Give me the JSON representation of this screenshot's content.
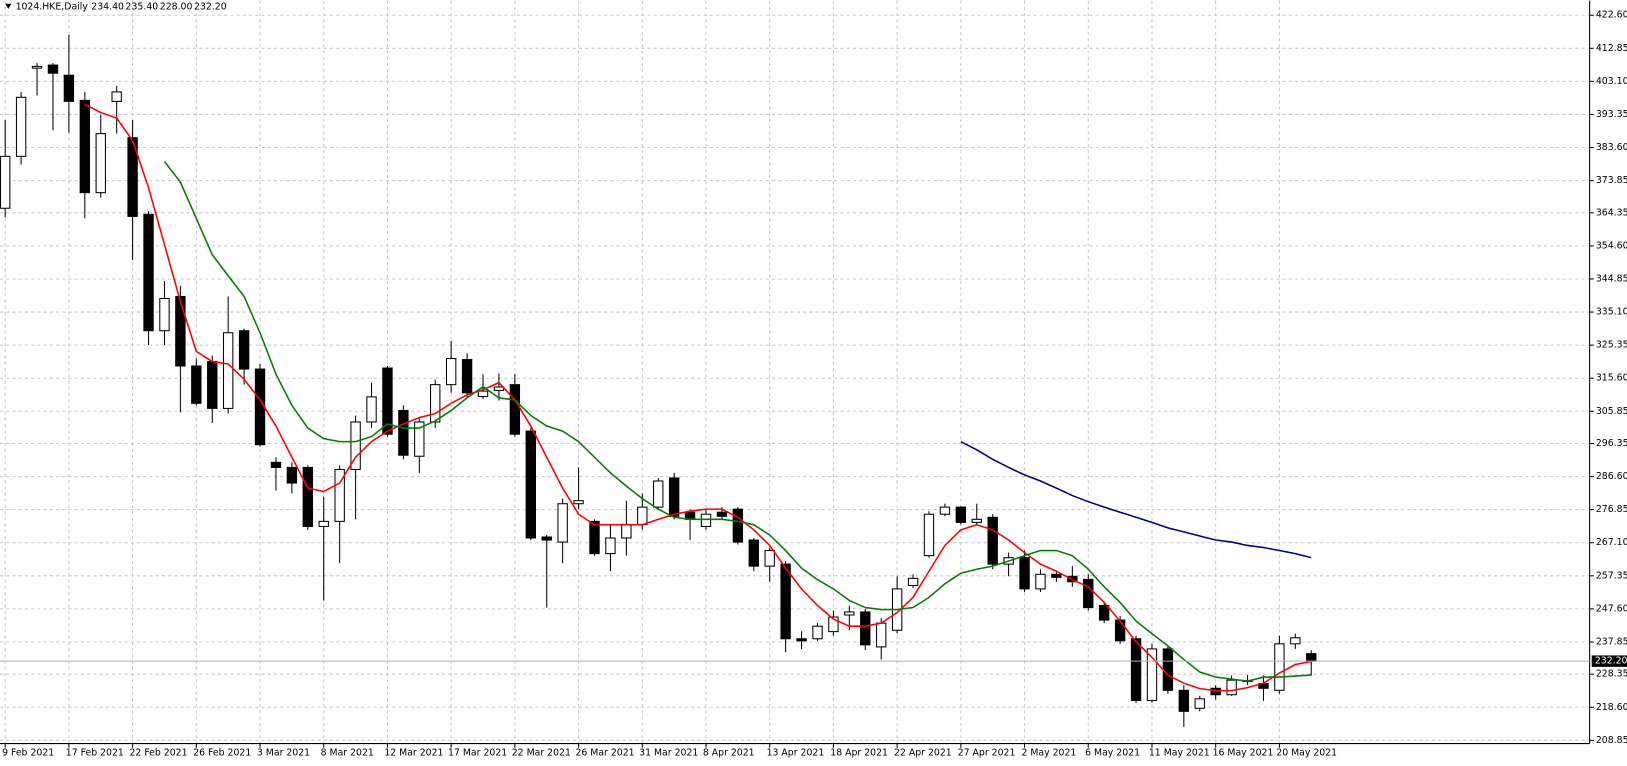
{
  "chart_data": {
    "type": "candlestick",
    "title": "1024.HKE,Daily",
    "info_labels": [
      "234.40",
      "235.40",
      "228.00",
      "232.20"
    ],
    "current_price": {
      "value": 232.2,
      "label": "232.20"
    },
    "categories": [
      "9 Feb 2021",
      null,
      null,
      null,
      "17 Feb 2021",
      null,
      null,
      null,
      "22 Feb 2021",
      null,
      null,
      null,
      "26 Feb 2021",
      null,
      null,
      null,
      "3 Mar 2021",
      null,
      null,
      null,
      "8 Mar 2021",
      null,
      null,
      null,
      "12 Mar 2021",
      null,
      null,
      null,
      "17 Mar 2021",
      null,
      null,
      null,
      "22 Mar 2021",
      null,
      null,
      null,
      "26 Mar 2021",
      null,
      null,
      null,
      "31 Mar 2021",
      null,
      null,
      null,
      "8 Apr 2021",
      null,
      null,
      null,
      "13 Apr 2021",
      null,
      null,
      null,
      "18 Apr 2021",
      null,
      null,
      null,
      "22 Apr 2021",
      null,
      null,
      null,
      "27 Apr 2021",
      null,
      null,
      null,
      "2 May 2021",
      null,
      null,
      null,
      "6 May 2021",
      null,
      null,
      null,
      "11 May 2021",
      null,
      null,
      null,
      "16 May 2021",
      null,
      null,
      null,
      "20 May 2021",
      null,
      null
    ],
    "open": [
      365.7,
      381.0,
      407,
      407.9,
      404.9,
      397.5,
      370.3,
      397.2,
      386.5,
      363.9,
      329.6,
      339.7,
      319.2,
      320.5,
      306.7,
      329.6,
      318.3,
      290.8,
      289.3,
      289.3,
      271.9,
      273.4,
      288.7,
      302.7,
      318.6,
      306.1,
      292.6,
      302.7,
      313.7,
      321.1,
      310.2,
      312,
      313.7,
      300,
      268.8,
      267.3,
      278.6,
      273.4,
      263.9,
      268.5,
      272.5,
      277.6,
      286.2,
      276.1,
      271.9,
      276.1,
      277,
      267.9,
      260.2,
      260.8,
      238.8,
      238.8,
      240.9,
      245.8,
      246.7,
      236.4,
      241.3,
      254.5,
      263.3,
      275.5,
      277.6,
      273.1,
      274.6,
      260.8,
      262.7,
      253.5,
      257.8,
      257.2,
      256.3,
      248.6,
      244.3,
      238.8,
      220.6,
      235.8,
      223.6,
      218.3,
      224.2,
      222.3,
      226.5,
      225.6,
      223.6,
      237.3,
      234.4
    ],
    "high": [
      391.7,
      400,
      408.5,
      408.5,
      416.8,
      400,
      393.2,
      401.8,
      391.7,
      364.8,
      344.3,
      342.8,
      321.4,
      322.3,
      339.7,
      330.2,
      319.8,
      292.3,
      290.8,
      289.9,
      280.7,
      289.9,
      304.6,
      314.3,
      319.2,
      307.6,
      303.7,
      315.2,
      326.6,
      322.9,
      316.8,
      317,
      316.8,
      300.9,
      269.4,
      280.1,
      289.3,
      274,
      272.5,
      279.5,
      281.6,
      286.2,
      287.7,
      277,
      277,
      277.6,
      277.6,
      268.5,
      265.7,
      261.7,
      241,
      243.4,
      247.1,
      248.6,
      247.6,
      244.9,
      257.2,
      257.8,
      276.4,
      278.6,
      277.9,
      278.6,
      275.5,
      264.2,
      264.8,
      259.3,
      258.7,
      260.2,
      257.8,
      249.5,
      245.5,
      239.7,
      237.3,
      236.7,
      225.1,
      222,
      225.1,
      228,
      228.1,
      228,
      239.7,
      240.3,
      235.4
    ],
    "low": [
      363,
      378.6,
      399,
      388.7,
      388,
      362.7,
      368.8,
      387.7,
      350.4,
      325.4,
      325.4,
      305.5,
      307.6,
      302.4,
      305.2,
      313.7,
      295.4,
      282.5,
      281.6,
      270.9,
      250.1,
      261.1,
      274,
      300.9,
      298.4,
      291.7,
      287.7,
      300.9,
      311.3,
      309.8,
      309.5,
      309,
      298.4,
      267.9,
      248,
      261.1,
      277,
      263.3,
      258.7,
      263.3,
      270.9,
      277,
      274,
      267.9,
      270.9,
      274,
      266.6,
      258.7,
      255.6,
      234.8,
      235.8,
      238.2,
      239.7,
      241.3,
      235.5,
      232.7,
      240.4,
      253.8,
      262.7,
      274.9,
      272.5,
      272.5,
      259.3,
      257.2,
      252.6,
      252.6,
      255.6,
      254.1,
      247.1,
      243.4,
      237.3,
      219.9,
      219.9,
      222.6,
      212.8,
      217.4,
      220.9,
      222.0,
      225.2,
      220.5,
      222.6,
      235.8,
      228
    ],
    "close": [
      381.0,
      398.4,
      407.5,
      405.5,
      397.2,
      370.3,
      387.7,
      400,
      363.3,
      329.6,
      339.1,
      319.2,
      308.2,
      306.7,
      329,
      318.3,
      296,
      289.3,
      284.7,
      271.9,
      273.4,
      288.7,
      302.7,
      310.1,
      299.1,
      292.9,
      302.7,
      313.7,
      321.4,
      311.3,
      311.8,
      313,
      299.1,
      268.5,
      267.9,
      278.6,
      279.5,
      263.9,
      268.5,
      272.5,
      277.6,
      285.3,
      274.9,
      274,
      275.5,
      274.9,
      267.3,
      260.2,
      264.8,
      238.8,
      238.2,
      242.5,
      245.2,
      246.7,
      237,
      243.4,
      253.5,
      256.6,
      275.5,
      277.6,
      273.1,
      274,
      260.8,
      262.7,
      253.5,
      257.8,
      256.9,
      255.6,
      248,
      244.3,
      238.2,
      220.6,
      235.8,
      223.6,
      217.4,
      221.1,
      222.3,
      226.6,
      226.3,
      224.2,
      237.3,
      239.1,
      232.2
    ],
    "up_color": "#ffffff",
    "down_color": "#000000",
    "lines": [
      {
        "color": "#ff0000",
        "values": [
          null,
          null,
          null,
          null,
          null,
          396.3,
          393.9,
          392.3,
          385.6,
          371.8,
          355.0,
          338.2,
          323.5,
          320.5,
          319.8,
          315.3,
          309.2,
          301.5,
          292.3,
          283.2,
          282.2,
          284.7,
          292.3,
          296.9,
          300.0,
          302.1,
          304.0,
          305.2,
          308.2,
          310.7,
          312.2,
          314.3,
          309.2,
          301.5,
          292.3,
          283.2,
          275.5,
          272.4,
          272.4,
          272.4,
          272.4,
          274.0,
          275.5,
          276.4,
          277.0,
          277.0,
          274.6,
          270.9,
          266.3,
          259.6,
          253.5,
          248.6,
          244.6,
          242.5,
          242.5,
          243.4,
          246.5,
          251.0,
          258.7,
          266.3,
          270.9,
          272.4,
          270.9,
          267.9,
          264.2,
          260.8,
          258.7,
          256.2,
          254.1,
          249.5,
          244.0,
          237.9,
          233.3,
          228.1,
          225.7,
          224.1,
          223.5,
          223.5,
          224.4,
          225.7,
          228.7,
          231.2,
          232.1
        ]
      },
      {
        "color": "#008000",
        "values": [
          null,
          null,
          null,
          null,
          null,
          null,
          null,
          null,
          null,
          null,
          379.5,
          373.4,
          362.7,
          352.0,
          345.8,
          339.7,
          329.0,
          316.8,
          307.6,
          300.9,
          297.8,
          296.9,
          296.9,
          298.4,
          302.1,
          300.9,
          300.9,
          303.0,
          306.1,
          309.8,
          313.1,
          309.8,
          309.2,
          304.6,
          301.5,
          300.0,
          296.9,
          292.3,
          287.7,
          283.8,
          280.1,
          277.0,
          274.6,
          274.0,
          274.0,
          274.0,
          273.4,
          272.4,
          269.4,
          264.8,
          259.6,
          256.2,
          253.5,
          250.1,
          248.0,
          247.4,
          247.4,
          248.0,
          251.0,
          255.0,
          258.1,
          259.3,
          260.2,
          261.7,
          263.3,
          264.8,
          264.8,
          263.3,
          259.3,
          254.1,
          249.5,
          244.0,
          240.3,
          236.7,
          232.7,
          229.0,
          227.5,
          226.9,
          226.3,
          227.5,
          227.5,
          227.8,
          228.1
        ]
      },
      {
        "color": "#000080",
        "values": [
          null,
          null,
          null,
          null,
          null,
          null,
          null,
          null,
          null,
          null,
          null,
          null,
          null,
          null,
          null,
          null,
          null,
          null,
          null,
          null,
          null,
          null,
          null,
          null,
          null,
          null,
          null,
          null,
          null,
          null,
          null,
          null,
          null,
          null,
          null,
          null,
          null,
          null,
          null,
          null,
          null,
          null,
          null,
          null,
          null,
          null,
          null,
          null,
          null,
          null,
          null,
          null,
          null,
          null,
          null,
          null,
          null,
          null,
          null,
          null,
          296.9,
          294.5,
          291.7,
          289.3,
          287.1,
          285.3,
          283.2,
          281.0,
          279.2,
          277.6,
          276.1,
          274.6,
          273.1,
          271.5,
          270.3,
          269.1,
          267.9,
          267.3,
          266.3,
          265.7,
          264.8,
          263.9,
          262.7
        ]
      }
    ],
    "ylim": [
      207.9,
      426.9
    ],
    "yticks": [
      208.85,
      {
        "value": 218.6,
        "label": "218.60"
      },
      228.35,
      237.85,
      {
        "value": 247.6,
        "label": "247.60"
      },
      257.35,
      {
        "value": 267.1,
        "label": "267.10"
      },
      276.85,
      {
        "value": 286.6,
        "label": "286.60"
      },
      296.35,
      305.85,
      {
        "value": 315.6,
        "label": "315.60"
      },
      325.35,
      {
        "value": 335.1,
        "label": "335.10"
      },
      344.85,
      {
        "value": 354.6,
        "label": "354.60"
      },
      364.35,
      373.85,
      {
        "value": 383.6,
        "label": "383.60"
      },
      393.35,
      {
        "value": 403.1,
        "label": "403.10"
      },
      412.85,
      {
        "value": 422.6,
        "label": "422.60"
      }
    ],
    "grid": true
  }
}
